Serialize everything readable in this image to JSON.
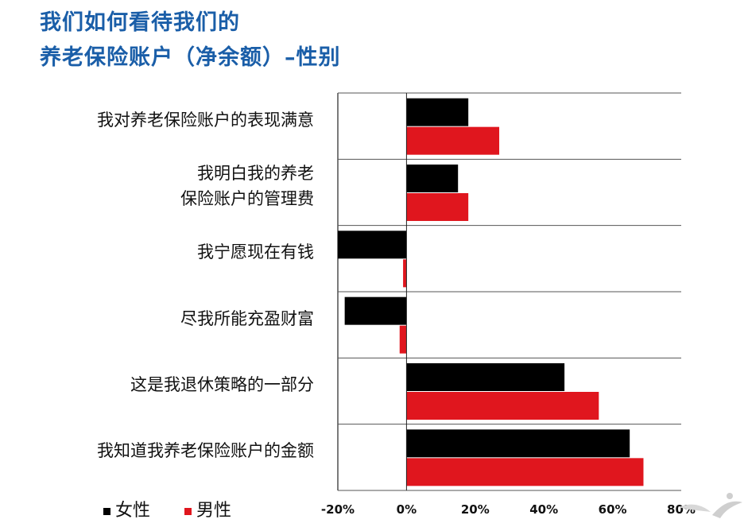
{
  "title_line1": "我们如何看待我们的",
  "title_line2": "养老保险账户（净余额）–性别",
  "legend": [
    {
      "label": "女性",
      "color": "#000000"
    },
    {
      "label": "男性",
      "color": "#e0161e"
    }
  ],
  "chart_data": {
    "type": "bar",
    "orientation": "horizontal",
    "categories": [
      [
        "我对养老保险账户的表现满意"
      ],
      [
        "我明白我的养老",
        "保险账户的管理费"
      ],
      [
        "我宁愿现在有钱"
      ],
      [
        "尽我所能充盈财富"
      ],
      [
        "这是我退休策略的一部分"
      ],
      [
        "我知道我养老保险账户的金额"
      ]
    ],
    "series": [
      {
        "name": "女性",
        "color": "#000000",
        "values": [
          18,
          15,
          -20,
          -18,
          46,
          65
        ]
      },
      {
        "name": "男性",
        "color": "#e0161e",
        "values": [
          27,
          18,
          -1,
          -2,
          56,
          69
        ]
      }
    ],
    "xlim": [
      -20,
      80
    ],
    "xticks": [
      "-20%",
      "0%",
      "20%",
      "40%",
      "60%",
      "80%"
    ],
    "xtick_values": [
      -20,
      0,
      20,
      40,
      60,
      80
    ],
    "grid": "horizontal separators between categories"
  }
}
